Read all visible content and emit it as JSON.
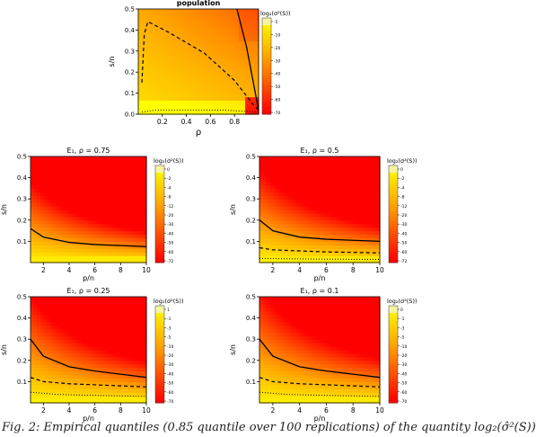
{
  "colors": {
    "low": "#ff0000",
    "mid": "#ffa500",
    "high": "#ffff00",
    "top": "#f5f5a0"
  },
  "caption": "Fig. 2: Empirical quantiles (0.85 quantile over 100 replications) of the quantity log₂(σ̂²(S))",
  "chart_data": [
    {
      "type": "heatmap",
      "title": "population",
      "xlabel": "ρ",
      "ylabel": "s/n",
      "xlim": [
        0,
        1
      ],
      "ylim": [
        0,
        0.5
      ],
      "xticks": [
        "0.2",
        "0.4",
        "0.6",
        "0.8"
      ],
      "yticks": [
        "0.0",
        "0.1",
        "0.2",
        "0.3",
        "0.4",
        "0.5"
      ],
      "colorbar_title": "log₂(σ²(S))",
      "colorbar_ticks": [
        "-5",
        "-10",
        "-20",
        "-30",
        "-40",
        "-50",
        "-60",
        "-70"
      ],
      "solid_line": [
        [
          0.82,
          0.5
        ],
        [
          0.9,
          0.32
        ],
        [
          1.0,
          0.02
        ]
      ],
      "dashed_line": [
        [
          0.03,
          0.15
        ],
        [
          0.05,
          0.38
        ],
        [
          0.08,
          0.44
        ],
        [
          0.25,
          0.39
        ],
        [
          0.55,
          0.29
        ],
        [
          0.8,
          0.16
        ],
        [
          0.95,
          0.05
        ],
        [
          1.0,
          0.02
        ]
      ],
      "dotted_line": [
        [
          0.03,
          0.01
        ],
        [
          0.15,
          0.02
        ],
        [
          0.4,
          0.02
        ],
        [
          0.7,
          0.02
        ],
        [
          1.0,
          0.01
        ]
      ]
    },
    {
      "type": "heatmap",
      "title": "E₁, ρ = 0.75",
      "xlabel": "p/n",
      "ylabel": "s/n",
      "xlim": [
        1,
        10
      ],
      "ylim": [
        0,
        0.5
      ],
      "xticks": [
        "2",
        "4",
        "6",
        "8",
        "10"
      ],
      "yticks": [
        "0.1",
        "0.2",
        "0.3",
        "0.4",
        "0.5"
      ],
      "colorbar_title": "log₂(σ²(S))",
      "colorbar_ticks": [
        "0",
        "-2",
        "-4",
        "-8",
        "-12",
        "-20",
        "-30",
        "-40",
        "-50",
        "-60",
        "-72"
      ],
      "solid_line": [
        [
          1,
          0.16
        ],
        [
          2,
          0.12
        ],
        [
          4,
          0.095
        ],
        [
          6,
          0.085
        ],
        [
          8,
          0.08
        ],
        [
          10,
          0.075
        ]
      ],
      "dashed_line": [],
      "dotted_line": []
    },
    {
      "type": "heatmap",
      "title": "E₁, ρ = 0.5",
      "xlabel": "p/n",
      "ylabel": "s/n",
      "xlim": [
        1,
        10
      ],
      "ylim": [
        0,
        0.5
      ],
      "xticks": [
        "2",
        "4",
        "6",
        "8",
        "10"
      ],
      "yticks": [
        "0.1",
        "0.2",
        "0.3",
        "0.4",
        "0.5"
      ],
      "colorbar_title": "log₂(σ²(S))",
      "colorbar_ticks": [
        "0",
        "-2",
        "-4",
        "-8",
        "-12",
        "-20",
        "-30",
        "-40",
        "-50",
        "-60",
        "-72"
      ],
      "solid_line": [
        [
          1,
          0.2
        ],
        [
          2,
          0.15
        ],
        [
          4,
          0.12
        ],
        [
          6,
          0.11
        ],
        [
          8,
          0.105
        ],
        [
          10,
          0.1
        ]
      ],
      "dashed_line": [
        [
          1,
          0.07
        ],
        [
          2,
          0.06
        ],
        [
          4,
          0.055
        ],
        [
          6,
          0.05
        ],
        [
          8,
          0.048
        ],
        [
          10,
          0.045
        ]
      ],
      "dotted_line": [
        [
          1,
          0.02
        ],
        [
          3,
          0.018
        ],
        [
          6,
          0.016
        ],
        [
          10,
          0.015
        ]
      ]
    },
    {
      "type": "heatmap",
      "title": "E₁, ρ = 0.25",
      "xlabel": "p/n",
      "ylabel": "s/n",
      "xlim": [
        1,
        10
      ],
      "ylim": [
        0,
        0.5
      ],
      "xticks": [
        "2",
        "4",
        "6",
        "8",
        "10"
      ],
      "yticks": [
        "0.1",
        "0.2",
        "0.3",
        "0.4",
        "0.5"
      ],
      "colorbar_title": "log₂(σ²(S))",
      "colorbar_ticks": [
        "1",
        "-1",
        "-3",
        "-5",
        "-10",
        "-20",
        "-30",
        "-40",
        "-50",
        "-60",
        "-70"
      ],
      "solid_line": [
        [
          1,
          0.3
        ],
        [
          2,
          0.22
        ],
        [
          4,
          0.17
        ],
        [
          6,
          0.15
        ],
        [
          8,
          0.135
        ],
        [
          10,
          0.12
        ]
      ],
      "dashed_line": [
        [
          1,
          0.12
        ],
        [
          2,
          0.1
        ],
        [
          4,
          0.09
        ],
        [
          6,
          0.085
        ],
        [
          8,
          0.08
        ],
        [
          10,
          0.075
        ]
      ],
      "dotted_line": [
        [
          1,
          0.05
        ],
        [
          3,
          0.04
        ],
        [
          6,
          0.035
        ],
        [
          10,
          0.03
        ]
      ]
    },
    {
      "type": "heatmap",
      "title": "E₁, ρ = 0.1",
      "xlabel": "p/n",
      "ylabel": "s/n",
      "xlim": [
        1,
        10
      ],
      "ylim": [
        0,
        0.5
      ],
      "xticks": [
        "2",
        "4",
        "6",
        "8",
        "10"
      ],
      "yticks": [
        "0.1",
        "0.2",
        "0.3",
        "0.4",
        "0.5"
      ],
      "colorbar_title": "log₂(σ²(S))",
      "colorbar_ticks": [
        "0",
        "-1",
        "-3",
        "-5",
        "-10",
        "-20",
        "-30",
        "-40",
        "-50",
        "-60",
        "-70"
      ],
      "solid_line": [
        [
          1,
          0.3
        ],
        [
          2,
          0.22
        ],
        [
          4,
          0.17
        ],
        [
          6,
          0.15
        ],
        [
          8,
          0.135
        ],
        [
          10,
          0.12
        ]
      ],
      "dashed_line": [
        [
          1,
          0.12
        ],
        [
          2,
          0.1
        ],
        [
          4,
          0.09
        ],
        [
          6,
          0.085
        ],
        [
          8,
          0.08
        ],
        [
          10,
          0.075
        ]
      ],
      "dotted_line": [
        [
          1,
          0.05
        ],
        [
          3,
          0.04
        ],
        [
          6,
          0.035
        ],
        [
          10,
          0.03
        ]
      ]
    }
  ]
}
